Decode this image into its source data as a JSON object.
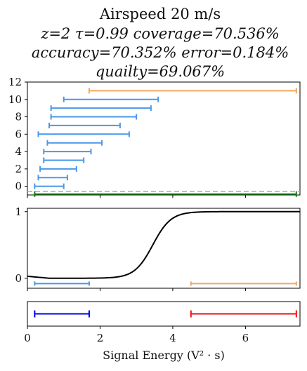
{
  "title_lines": [
    "Airspeed 20 m/s",
    "z=2 τ=0.99 coverage=70.536%",
    "accuracy=70.352% error=0.184%",
    "quailty=69.067%"
  ],
  "colors": {
    "blue": "#4a98e8",
    "orange": "#f5a65b",
    "green": "#1a7a1a",
    "gray_dashed": "#aaaaaa",
    "curve": "#000000",
    "pure_blue": "#0000ee",
    "red": "#ee1111"
  },
  "chart_data": [
    {
      "type": "interval",
      "xlim": [
        0,
        7.5
      ],
      "ylim": [
        -1,
        12
      ],
      "yticks": [
        "0",
        "2",
        "4",
        "6",
        "8",
        "10",
        "12"
      ],
      "intervals": [
        {
          "y": 0,
          "start": 0.2,
          "end": 1.0,
          "color": "blue"
        },
        {
          "y": 1,
          "start": 0.3,
          "end": 1.1,
          "color": "blue"
        },
        {
          "y": 2,
          "start": 0.35,
          "end": 1.35,
          "color": "blue"
        },
        {
          "y": 3,
          "start": 0.45,
          "end": 1.55,
          "color": "blue"
        },
        {
          "y": 4,
          "start": 0.45,
          "end": 1.75,
          "color": "blue"
        },
        {
          "y": 5,
          "start": 0.55,
          "end": 2.05,
          "color": "blue"
        },
        {
          "y": 6,
          "start": 0.3,
          "end": 2.8,
          "color": "blue"
        },
        {
          "y": 7,
          "start": 0.6,
          "end": 2.55,
          "color": "blue"
        },
        {
          "y": 8,
          "start": 0.65,
          "end": 3.0,
          "color": "blue"
        },
        {
          "y": 9,
          "start": 0.65,
          "end": 3.4,
          "color": "blue"
        },
        {
          "y": 10,
          "start": 1.0,
          "end": 3.6,
          "color": "blue"
        },
        {
          "y": 11,
          "start": 1.7,
          "end": 7.4,
          "color": "orange"
        },
        {
          "y": -1,
          "start": 0.2,
          "end": 7.4,
          "color": "green"
        }
      ],
      "dashed_line_y": -0.6
    },
    {
      "type": "line",
      "xlim": [
        0,
        7.5
      ],
      "ylim": [
        -0.15,
        1.05
      ],
      "yticks": [
        "0",
        "1"
      ],
      "sigmoid": {
        "center": 3.45,
        "steepness": 4.0,
        "low": 0.0,
        "high": 1.0
      },
      "tail_start_y": 0.03,
      "intervals": [
        {
          "y": -0.08,
          "start": 0.2,
          "end": 1.7,
          "color": "blue"
        },
        {
          "y": -0.08,
          "start": 4.5,
          "end": 7.4,
          "color": "orange"
        }
      ]
    },
    {
      "type": "interval",
      "xlim": [
        0,
        7.5
      ],
      "xticks": [
        "0",
        "2",
        "4",
        "6"
      ],
      "xlabel": "Signal Energy (V² · s)",
      "intervals": [
        {
          "start": 0.2,
          "end": 1.7,
          "color": "pure_blue"
        },
        {
          "start": 4.5,
          "end": 7.4,
          "color": "red"
        }
      ]
    }
  ]
}
